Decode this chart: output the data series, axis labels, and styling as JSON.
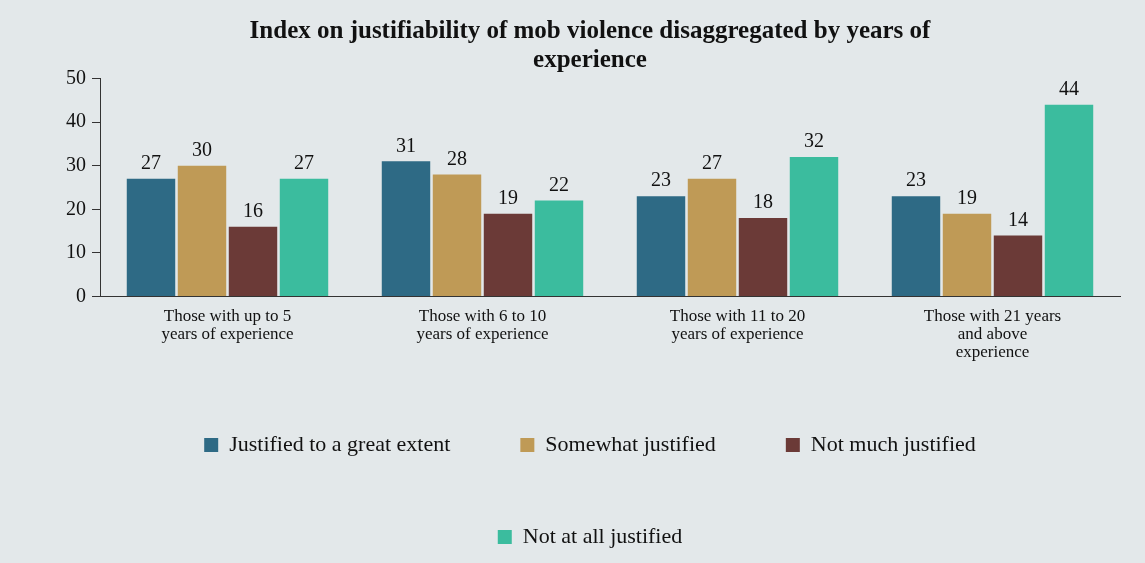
{
  "chart_data": {
    "type": "bar",
    "title": "Index on justifiability of mob violence disaggregated by years of experience",
    "categories": [
      "Those with up to 5 years of experience",
      "Those with 6 to 10 years of experience",
      "Those with 11 to 20 years of experience",
      "Those with 21 years and above experience"
    ],
    "series": [
      {
        "name": "Justified to a great extent",
        "color": "#2e6a85",
        "values": [
          27,
          31,
          23,
          23
        ]
      },
      {
        "name": "Somewhat justified",
        "color": "#bf9a56",
        "values": [
          30,
          28,
          27,
          19
        ]
      },
      {
        "name": "Not much justified",
        "color": "#6b3a37",
        "values": [
          16,
          19,
          18,
          14
        ]
      },
      {
        "name": "Not at all justified",
        "color": "#3bbc9e",
        "values": [
          27,
          22,
          32,
          44
        ]
      }
    ],
    "ylim": [
      0,
      50
    ],
    "yticks": [
      0,
      10,
      20,
      30,
      40,
      50
    ],
    "grid": false,
    "legend": "bottom",
    "data_labels": true
  }
}
